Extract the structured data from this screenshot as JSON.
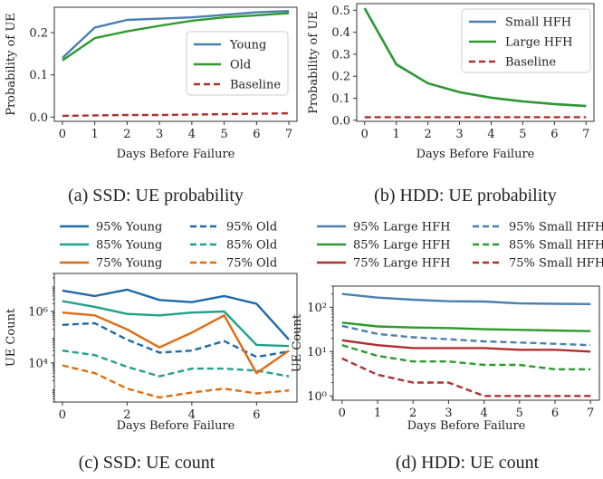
{
  "charts": [
    {
      "id": "a",
      "caption": "(a) SSD: UE probability",
      "type": "line",
      "x": [
        0,
        1,
        2,
        3,
        4,
        5,
        6,
        7
      ],
      "xticks": [
        "0",
        "1",
        "2",
        "3",
        "4",
        "5",
        "6",
        "7"
      ],
      "xlabel": "Days Before Failure",
      "ylabel": "Probability of UE",
      "ylim": [
        -0.01,
        0.26
      ],
      "yticks": [
        "0.0",
        "0.1",
        "0.2"
      ],
      "ytick_values": [
        0.0,
        0.1,
        0.2
      ],
      "legend_position": "center-right",
      "series": [
        {
          "name": "Young",
          "color": "#4a7fb0",
          "dash": "",
          "values": [
            0.14,
            0.212,
            0.23,
            0.233,
            0.236,
            0.242,
            0.248,
            0.251
          ]
        },
        {
          "name": "Old",
          "color": "#2e9a2e",
          "dash": "",
          "values": [
            0.134,
            0.187,
            0.203,
            0.216,
            0.228,
            0.236,
            0.241,
            0.246
          ]
        },
        {
          "name": "Baseline",
          "color": "#b03030",
          "dash": "7,4",
          "values": [
            0.003,
            0.004,
            0.005,
            0.005,
            0.006,
            0.007,
            0.008,
            0.009
          ]
        }
      ]
    },
    {
      "id": "b",
      "caption": "(b) HDD: UE probability",
      "type": "line",
      "x": [
        0,
        1,
        2,
        3,
        4,
        5,
        6,
        7
      ],
      "xticks": [
        "0",
        "1",
        "2",
        "3",
        "4",
        "5",
        "6",
        "7"
      ],
      "xlabel": "Days Before Failure",
      "ylabel": "Probability of UE",
      "ylim": [
        -0.005,
        0.53
      ],
      "yticks": [
        "0.0",
        "0.1",
        "0.2",
        "0.3",
        "0.4",
        "0.5"
      ],
      "ytick_values": [
        0.0,
        0.1,
        0.2,
        0.3,
        0.4,
        0.5
      ],
      "legend_position": "top-right",
      "series": [
        {
          "name": "Small HFH",
          "color": "#4a7fb0",
          "dash": "",
          "values": [
            0.51,
            0.255,
            0.168,
            0.128,
            0.103,
            0.086,
            0.074,
            0.065
          ]
        },
        {
          "name": "Large HFH",
          "color": "#2e9a2e",
          "dash": "",
          "values": [
            0.508,
            0.253,
            0.168,
            0.127,
            0.102,
            0.085,
            0.073,
            0.064
          ]
        },
        {
          "name": "Baseline",
          "color": "#b03030",
          "dash": "7,4",
          "values": [
            0.014,
            0.014,
            0.014,
            0.014,
            0.014,
            0.014,
            0.014,
            0.014
          ]
        }
      ]
    },
    {
      "id": "c",
      "caption": "(c) SSD: UE count",
      "type": "line",
      "log_y": true,
      "x": [
        0,
        1,
        2,
        3,
        4,
        5,
        6,
        7
      ],
      "xticks": [
        "0",
        "2",
        "4",
        "6"
      ],
      "xtick_values": [
        0,
        2,
        4,
        6
      ],
      "xlabel": "Days Before Failure",
      "ylabel": "UE Count",
      "ylim": [
        300,
        30000000.0
      ],
      "yticks": [
        "10⁴",
        "10⁶"
      ],
      "ytick_values": [
        10000.0,
        1000000.0
      ],
      "legend_position": "above",
      "series": [
        {
          "name": "95% Young",
          "color": "#1f6aa8",
          "dash": "",
          "values": [
            6500000,
            4000000,
            7000000,
            2800000,
            2300000,
            4000000,
            2000000,
            80000
          ]
        },
        {
          "name": "95% Old",
          "color": "#1f6aa8",
          "dash": "7,4",
          "values": [
            300000,
            350000,
            80000,
            25000,
            30000,
            70000,
            17000,
            28000
          ]
        },
        {
          "name": "85% Young",
          "color": "#21a08a",
          "dash": "",
          "values": [
            2500000,
            1500000,
            800000,
            700000,
            900000,
            1000000,
            50000,
            45000
          ]
        },
        {
          "name": "85% Old",
          "color": "#21a08a",
          "dash": "7,4",
          "values": [
            30000,
            20000,
            7000,
            3000,
            6000,
            6000,
            5000,
            3000
          ]
        },
        {
          "name": "75% Young",
          "color": "#e06b10",
          "dash": "",
          "values": [
            900000,
            700000,
            200000,
            40000,
            150000,
            700000,
            4000,
            30000
          ]
        },
        {
          "name": "75% Old",
          "color": "#e06b10",
          "dash": "7,4",
          "values": [
            8000,
            4000,
            1000,
            450,
            700,
            1000,
            650,
            850
          ]
        }
      ]
    },
    {
      "id": "d",
      "caption": "(d) HDD: UE count",
      "type": "line",
      "log_y": true,
      "x": [
        0,
        1,
        2,
        3,
        4,
        5,
        6,
        7
      ],
      "xticks": [
        "0",
        "1",
        "2",
        "3",
        "4",
        "5",
        "6",
        "7"
      ],
      "xlabel": "Days Before Failure",
      "ylabel": "UE Count",
      "ylim": [
        0.8,
        300
      ],
      "yticks": [
        "10⁰",
        "10¹",
        "10²"
      ],
      "ytick_values": [
        1,
        10,
        100
      ],
      "legend_position": "above",
      "series": [
        {
          "name": "95% Large HFH",
          "color": "#4a7fb0",
          "dash": "",
          "values": [
            200,
            165,
            148,
            137,
            135,
            122,
            120,
            118
          ]
        },
        {
          "name": "95% Small HFH",
          "color": "#4a7fb0",
          "dash": "7,4",
          "values": [
            38,
            25,
            21,
            19,
            17,
            16,
            15,
            14
          ]
        },
        {
          "name": "85% Large HFH",
          "color": "#2e9a2e",
          "dash": "",
          "values": [
            45,
            37,
            35,
            34,
            32,
            31,
            30,
            29
          ]
        },
        {
          "name": "85% Small HFH",
          "color": "#2e9a2e",
          "dash": "7,4",
          "values": [
            14,
            8,
            6,
            6,
            5,
            5,
            4,
            4
          ]
        },
        {
          "name": "75% Large HFH",
          "color": "#b03030",
          "dash": "",
          "values": [
            18,
            14,
            12,
            12,
            12,
            11,
            11,
            10
          ]
        },
        {
          "name": "75% Small HFH",
          "color": "#b03030",
          "dash": "7,4",
          "values": [
            7,
            3,
            2,
            2,
            1,
            1,
            1,
            1
          ]
        }
      ]
    }
  ]
}
